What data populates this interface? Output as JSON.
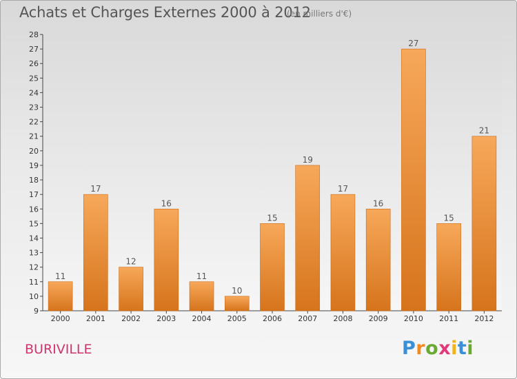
{
  "header": {
    "title": "Achats et Charges Externes 2000 à 2012",
    "unit": "(en milliers d'€)"
  },
  "footer": {
    "commune": "BURIVILLE",
    "logo_letters": [
      "P",
      "r",
      "o",
      "x",
      "i",
      "t",
      "i"
    ],
    "logo_colors": [
      "#3a8fd6",
      "#f28a1e",
      "#6aa932",
      "#e03a7a",
      "#f3b21d",
      "#3a8fd6",
      "#6aa932"
    ]
  },
  "chart_data": {
    "type": "bar",
    "title": "Achats et Charges Externes 2000 à 2012",
    "subtitle": "(en milliers d'€)",
    "categories": [
      "2000",
      "2001",
      "2002",
      "2003",
      "2004",
      "2005",
      "2006",
      "2007",
      "2008",
      "2009",
      "2010",
      "2011",
      "2012"
    ],
    "values": [
      11,
      17,
      12,
      16,
      11,
      10,
      15,
      19,
      17,
      16,
      27,
      15,
      21
    ],
    "ylim": [
      9,
      28
    ],
    "yticks": [
      9,
      10,
      11,
      12,
      13,
      14,
      15,
      16,
      17,
      18,
      19,
      20,
      21,
      22,
      23,
      24,
      25,
      26,
      27,
      28
    ],
    "grid": false,
    "legend": "none",
    "bar_color_top": "#f7a85a",
    "bar_color_bottom": "#d6741c"
  }
}
